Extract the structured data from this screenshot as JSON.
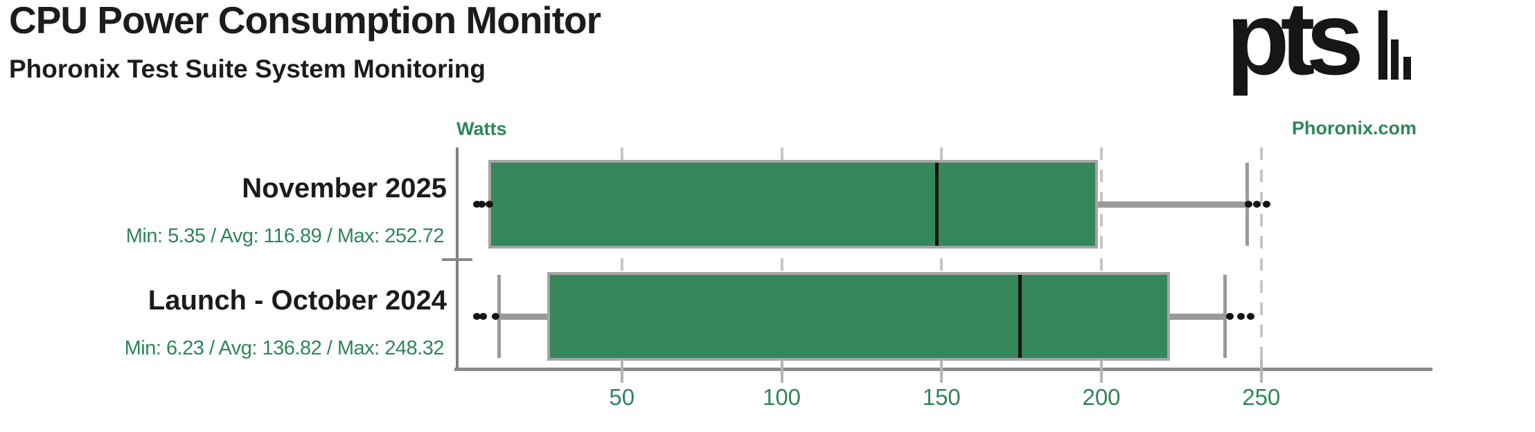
{
  "header": {
    "title": "CPU Power Consumption Monitor",
    "subtitle": "Phoronix Test Suite System Monitoring",
    "logo_text": "pts",
    "watermark": "Phoronix.com"
  },
  "chart_data": {
    "type": "boxplot",
    "orientation": "horizontal",
    "title": "CPU Power Consumption Monitor",
    "subtitle": "Phoronix Test Suite System Monitoring",
    "value_axis_label": "Watts",
    "axis_ticks": [
      50,
      100,
      150,
      200,
      250
    ],
    "xlim": [
      0,
      304
    ],
    "grid": "dashed-vertical-gridlines",
    "legend_position": "none",
    "series": [
      {
        "label": "November 2025",
        "stats_text": "Min: 5.35 / Avg: 116.89 / Max: 252.72",
        "min": 5.35,
        "avg": 116.89,
        "max": 252.72,
        "whisker_low": 9,
        "q1": 9,
        "median": 148.5,
        "q3": 198,
        "whisker_high": 245.5,
        "outliers_low": [
          4.5,
          6.0,
          8.5
        ],
        "outliers_high": [
          246.0,
          248.5,
          251.5
        ]
      },
      {
        "label": "Launch - October 2024",
        "stats_text": "Min: 6.23 / Avg: 136.82 / Max: 248.32",
        "min": 6.23,
        "avg": 136.82,
        "max": 248.32,
        "whisker_low": 11.5,
        "q1": 27.5,
        "median": 174.5,
        "q3": 220.5,
        "whisker_high": 238.5,
        "outliers_low": [
          4.5,
          6.5,
          10.5
        ],
        "outliers_high": [
          240.0,
          243.5,
          246.5
        ]
      }
    ]
  },
  "colors": {
    "box_fill": "#35875a",
    "box_border": "#a5a5a5",
    "whisker_gray": "#9a9a9a",
    "axis_gray": "#8a8a8a",
    "grid_gray": "#c5c5c5",
    "green_text": "#2d8659",
    "black_text": "#1b1b1b"
  }
}
